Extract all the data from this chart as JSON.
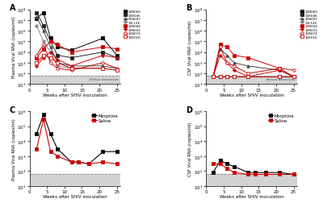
{
  "panel_A": {
    "title": "A",
    "ylabel": "Plasma Viral RNA (copies/ml)",
    "xlabel": "Weeks after SHIV inoculation",
    "below_detection": 60,
    "ylim_bottom": 10,
    "ylim_top": 100000000.0,
    "xlim": [
      0,
      26
    ],
    "xticks": [
      0,
      5,
      10,
      15,
      20,
      25
    ],
    "animals": [
      {
        "name": "12N060",
        "color": "#000000",
        "marker": "s",
        "filled": true,
        "weeks": [
          2,
          4,
          6,
          8,
          12,
          21,
          25
        ],
        "values": [
          15000000.0,
          50000000.0,
          200000.0,
          30000.0,
          15000.0,
          200000.0,
          5000.0
        ]
      },
      {
        "name": "14X046",
        "color": "#222222",
        "marker": "s",
        "filled": true,
        "weeks": [
          2,
          4,
          6,
          8,
          12,
          21,
          25
        ],
        "values": [
          50000000.0,
          3000000.0,
          100000.0,
          5000.0,
          3000.0,
          10000.0,
          3000.0
        ]
      },
      {
        "name": "11N097",
        "color": "#444444",
        "marker": "^",
        "filled": true,
        "weeks": [
          2,
          4,
          6,
          8,
          12,
          21,
          25
        ],
        "values": [
          20000000.0,
          1000000.0,
          30000.0,
          1000.0,
          500.0,
          500.0,
          300.0
        ]
      },
      {
        "name": "13L126",
        "color": "#888888",
        "marker": "o",
        "filled": true,
        "weeks": [
          2,
          4,
          6,
          8,
          12,
          21,
          25
        ],
        "values": [
          3000000.0,
          100000.0,
          10000.0,
          500.0,
          300.0,
          300.0,
          200.0
        ]
      },
      {
        "name": "12N044",
        "color": "#cc0000",
        "marker": "s",
        "filled": true,
        "weeks": [
          2,
          4,
          6,
          8,
          12,
          21,
          25
        ],
        "values": [
          3000.0,
          20000.0,
          100000.0,
          50000.0,
          10000.0,
          30000.0,
          20000.0
        ]
      },
      {
        "name": "12N015",
        "color": "#cc0000",
        "marker": "P",
        "filled": true,
        "weeks": [
          2,
          4,
          6,
          8,
          12,
          21,
          25
        ],
        "values": [
          500.0,
          3000.0,
          10000.0,
          2000.0,
          500.0,
          5000.0,
          3000.0
        ]
      },
      {
        "name": "11N074",
        "color": "#cc0000",
        "marker": "o",
        "filled": false,
        "weeks": [
          2,
          4,
          6,
          8,
          12,
          21,
          25
        ],
        "values": [
          5000.0,
          50000.0,
          1000.0,
          300.0,
          200.0,
          1000.0,
          300.0
        ]
      },
      {
        "name": "14X016",
        "color": "#cc0000",
        "marker": "s",
        "filled": false,
        "weeks": [
          2,
          4,
          6,
          8,
          12,
          21,
          25
        ],
        "values": [
          1000.0,
          5000.0,
          3000.0,
          1000.0,
          300.0,
          300.0,
          200.0
        ]
      }
    ]
  },
  "panel_B": {
    "title": "B",
    "ylabel": "CSF Viral RNA (copies/ml)",
    "xlabel": "Weeks after SHIV inoculation",
    "below_detection": 60,
    "ylim_bottom": 10,
    "ylim_top": 100000000.0,
    "xlim": [
      0,
      26
    ],
    "xticks": [
      0,
      5,
      10,
      15,
      20,
      25
    ],
    "animals": [
      {
        "name": "12N060",
        "color": "#000000",
        "marker": "s",
        "filled": true,
        "weeks": [
          2,
          4,
          6,
          8,
          12,
          21,
          25
        ],
        "values": [
          50,
          50,
          50,
          50,
          50,
          50,
          50
        ]
      },
      {
        "name": "14X046",
        "color": "#222222",
        "marker": "s",
        "filled": true,
        "weeks": [
          2,
          4,
          6,
          8,
          12,
          21,
          25
        ],
        "values": [
          50,
          50,
          50,
          50,
          50,
          50,
          50
        ]
      },
      {
        "name": "11N097",
        "color": "#444444",
        "marker": "^",
        "filled": true,
        "weeks": [
          2,
          4,
          6,
          8,
          12,
          21,
          25
        ],
        "values": [
          50,
          20000.0,
          5000.0,
          1000.0,
          500.0,
          200.0,
          50
        ]
      },
      {
        "name": "13L126",
        "color": "#888888",
        "marker": "o",
        "filled": true,
        "weeks": [
          2,
          4,
          6,
          8,
          12,
          21,
          25
        ],
        "values": [
          50,
          50,
          50,
          50,
          50,
          50,
          50
        ]
      },
      {
        "name": "12N044",
        "color": "#cc0000",
        "marker": "s",
        "filled": true,
        "weeks": [
          2,
          4,
          6,
          8,
          12,
          21,
          25
        ],
        "values": [
          50,
          50000.0,
          30000.0,
          5000.0,
          3000.0,
          300.0,
          50
        ]
      },
      {
        "name": "12N015",
        "color": "#cc0000",
        "marker": "P",
        "filled": true,
        "weeks": [
          2,
          4,
          6,
          8,
          12,
          21,
          25
        ],
        "values": [
          50,
          5000.0,
          1000.0,
          200.0,
          50,
          200.0,
          50
        ]
      },
      {
        "name": "11N074",
        "color": "#cc0000",
        "marker": "o",
        "filled": false,
        "weeks": [
          2,
          4,
          6,
          8,
          12,
          21,
          25
        ],
        "values": [
          50,
          30000.0,
          1000.0,
          500.0,
          100.0,
          300.0,
          200.0
        ]
      },
      {
        "name": "14X016",
        "color": "#cc0000",
        "marker": "s",
        "filled": false,
        "weeks": [
          2,
          4,
          6,
          8,
          12,
          21,
          25
        ],
        "values": [
          50,
          50,
          50,
          50,
          50,
          50,
          50
        ]
      }
    ]
  },
  "panel_C": {
    "title": "C",
    "ylabel": "Plasma Viral RNA (copies/ml)",
    "xlabel": "Weeks after SHIV inoculation",
    "below_detection": 60,
    "ylim_bottom": 10,
    "ylim_top": 1000000.0,
    "xlim": [
      0,
      26
    ],
    "xticks": [
      0,
      5,
      10,
      15,
      20,
      25
    ],
    "morphine": {
      "color": "#000000",
      "weeks": [
        2,
        4,
        6,
        8,
        12,
        14,
        17,
        21,
        25
      ],
      "values": [
        30000.0,
        600000.0,
        30000.0,
        3000.0,
        400.0,
        400.0,
        300.0,
        2000.0,
        2000.0
      ]
    },
    "saline": {
      "color": "#cc0000",
      "weeks": [
        2,
        4,
        6,
        8,
        12,
        14,
        17,
        21,
        25
      ],
      "values": [
        3000.0,
        300000.0,
        2000.0,
        1000.0,
        400.0,
        400.0,
        300.0,
        400.0,
        300.0
      ]
    }
  },
  "panel_D": {
    "title": "D",
    "ylabel": "CSF Viral RNA (copies/ml)",
    "xlabel": "Weeks after SHIV inoculation",
    "below_detection": 60,
    "ylim_bottom": 10,
    "ylim_top": 1000000.0,
    "xlim": [
      0,
      26
    ],
    "xticks": [
      0,
      5,
      10,
      15,
      20,
      25
    ],
    "morphine": {
      "color": "#000000",
      "weeks": [
        2,
        4,
        6,
        8,
        12,
        14,
        17,
        21,
        25
      ],
      "values": [
        80,
        500.0,
        300.0,
        200.0,
        80,
        80,
        80,
        80,
        60
      ]
    },
    "saline": {
      "color": "#cc0000",
      "weeks": [
        2,
        4,
        6,
        8,
        12,
        14,
        17,
        21,
        25
      ],
      "values": [
        300.0,
        300.0,
        150.0,
        80,
        60,
        60,
        60,
        60,
        60
      ]
    }
  },
  "below_detection_label": "Below detection",
  "morphine_label": "Morphine",
  "saline_label": "Saline",
  "legend_AB_names": [
    "12N060",
    "14X046",
    "11N097",
    "13L126",
    "12N044",
    "12N015",
    "11N074",
    "14X016"
  ]
}
